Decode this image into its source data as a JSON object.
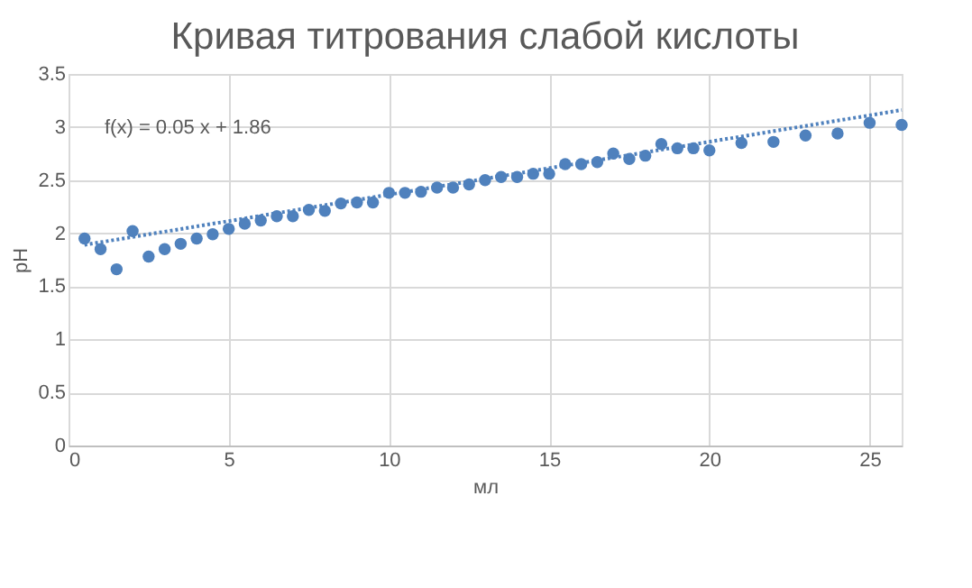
{
  "chart_data": {
    "type": "scatter",
    "title": "Кривая титрования слабой кислоты",
    "xlabel": "мл",
    "ylabel": "pH",
    "xlim": [
      0,
      26
    ],
    "xticks": [
      0,
      5,
      10,
      15,
      20,
      25
    ],
    "ylim": [
      0,
      3.5
    ],
    "yticks": [
      0,
      0.5,
      1,
      1.5,
      2,
      2.5,
      3,
      3.5
    ],
    "grid": true,
    "annotations": [
      "f(x) = 0.05 x + 1.86"
    ],
    "series": [
      {
        "marker": "circle",
        "color": "#4f81bd",
        "x": [
          0.5,
          1,
          1.5,
          2,
          2.5,
          3,
          3.5,
          4,
          4.5,
          5,
          5.5,
          6,
          6.5,
          7,
          7.5,
          8,
          8.5,
          9,
          9.5,
          10,
          10.5,
          11,
          11.5,
          12,
          12.5,
          13,
          13.5,
          14,
          14.5,
          15,
          15.5,
          16,
          16.5,
          17,
          17.5,
          18,
          18.5,
          19,
          19.5,
          20,
          21,
          22,
          23,
          24,
          25,
          26
        ],
        "values": [
          1.95,
          1.85,
          1.66,
          2.02,
          1.78,
          1.85,
          1.9,
          1.95,
          1.99,
          2.04,
          2.09,
          2.12,
          2.16,
          2.16,
          2.22,
          2.21,
          2.28,
          2.29,
          2.29,
          2.38,
          2.38,
          2.39,
          2.43,
          2.43,
          2.46,
          2.5,
          2.53,
          2.53,
          2.56,
          2.56,
          2.65,
          2.65,
          2.67,
          2.75,
          2.7,
          2.73,
          2.84,
          2.8,
          2.8,
          2.78,
          2.85,
          2.86,
          2.92,
          2.94,
          3.04,
          3.02
        ]
      },
      {
        "type": "line",
        "color": "#4f81bd",
        "line_style": "dotted",
        "x": [
          0.5,
          26
        ],
        "values": [
          1.89,
          3.16
        ]
      }
    ]
  }
}
